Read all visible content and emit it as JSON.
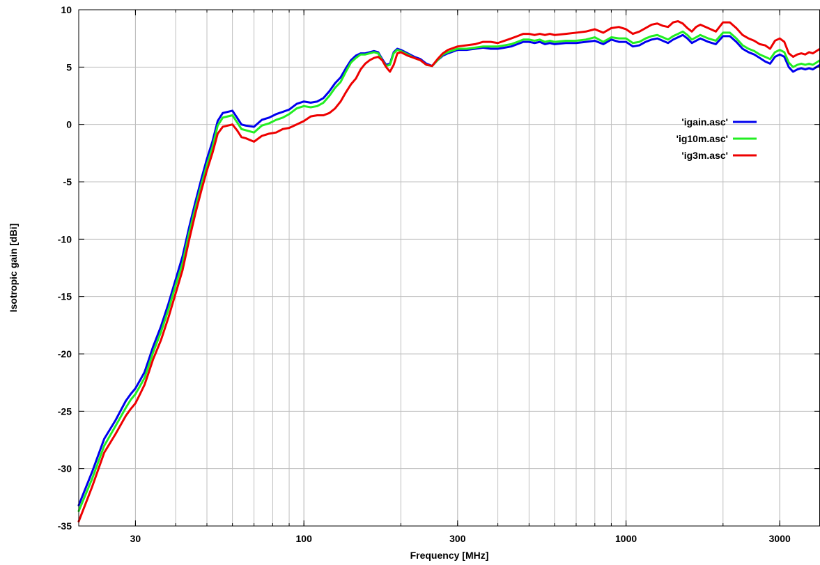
{
  "chart_data": {
    "type": "line",
    "xlabel": "Frequency [MHz]",
    "ylabel": "Isotropic gain [dBi]",
    "xscale": "log",
    "xlim": [
      20,
      4000
    ],
    "ylim": [
      -35,
      10
    ],
    "x_ticks": [
      30,
      100,
      300,
      1000,
      3000
    ],
    "y_ticks": [
      10,
      5,
      0,
      -5,
      -10,
      -15,
      -20,
      -25,
      -30,
      -35
    ],
    "grid": true,
    "legend_position": "top-right",
    "series": [
      {
        "name": "'igain.asc'",
        "color": "#0000ee",
        "x": [
          20,
          22,
          24,
          26,
          28,
          29,
          30,
          31,
          32,
          33,
          34,
          36,
          38,
          40,
          42,
          44,
          46,
          48,
          50,
          52,
          54,
          56,
          58,
          60,
          62,
          64,
          66,
          70,
          74,
          78,
          82,
          86,
          90,
          95,
          100,
          105,
          110,
          115,
          120,
          125,
          130,
          135,
          140,
          145,
          150,
          155,
          160,
          165,
          170,
          175,
          180,
          185,
          190,
          195,
          200,
          210,
          220,
          230,
          240,
          250,
          260,
          270,
          280,
          300,
          320,
          340,
          360,
          380,
          400,
          420,
          440,
          460,
          480,
          500,
          520,
          540,
          560,
          580,
          600,
          650,
          700,
          750,
          800,
          850,
          900,
          950,
          1000,
          1050,
          1100,
          1150,
          1200,
          1250,
          1300,
          1350,
          1400,
          1450,
          1500,
          1550,
          1600,
          1650,
          1700,
          1800,
          1900,
          2000,
          2100,
          2200,
          2300,
          2400,
          2500,
          2600,
          2700,
          2800,
          2900,
          3000,
          3100,
          3200,
          3300,
          3400,
          3500,
          3600,
          3700,
          3800,
          3900,
          4000
        ],
        "values": [
          -33.2,
          -30.3,
          -27.4,
          -25.8,
          -24.1,
          -23.5,
          -23.0,
          -22.3,
          -21.6,
          -20.5,
          -19.4,
          -17.6,
          -15.6,
          -13.5,
          -11.5,
          -9.0,
          -6.8,
          -4.8,
          -3.0,
          -1.5,
          0.3,
          1.0,
          1.1,
          1.2,
          0.6,
          0.0,
          -0.1,
          -0.2,
          0.4,
          0.6,
          0.9,
          1.1,
          1.3,
          1.8,
          2.0,
          1.9,
          2.0,
          2.3,
          2.9,
          3.6,
          4.1,
          4.9,
          5.6,
          6.0,
          6.2,
          6.2,
          6.3,
          6.4,
          6.3,
          5.7,
          5.2,
          5.3,
          6.3,
          6.6,
          6.5,
          6.2,
          5.9,
          5.7,
          5.3,
          5.1,
          5.6,
          6.0,
          6.2,
          6.5,
          6.5,
          6.6,
          6.7,
          6.6,
          6.6,
          6.7,
          6.8,
          7.0,
          7.2,
          7.2,
          7.1,
          7.2,
          7.0,
          7.1,
          7.0,
          7.1,
          7.1,
          7.2,
          7.3,
          7.0,
          7.4,
          7.2,
          7.2,
          6.8,
          6.9,
          7.2,
          7.4,
          7.5,
          7.3,
          7.1,
          7.4,
          7.6,
          7.8,
          7.5,
          7.1,
          7.3,
          7.5,
          7.2,
          7.0,
          7.7,
          7.7,
          7.2,
          6.6,
          6.3,
          6.1,
          5.8,
          5.5,
          5.3,
          5.9,
          6.1,
          5.9,
          5.0,
          4.6,
          4.8,
          4.9,
          4.8,
          4.9,
          4.8,
          5.0,
          5.2
        ]
      },
      {
        "name": "'ig10m.asc'",
        "color": "#22ee22",
        "x": [
          20,
          22,
          24,
          26,
          28,
          29,
          30,
          31,
          32,
          33,
          34,
          36,
          38,
          40,
          42,
          44,
          46,
          48,
          50,
          52,
          54,
          56,
          58,
          60,
          62,
          64,
          66,
          70,
          74,
          78,
          82,
          86,
          90,
          95,
          100,
          105,
          110,
          115,
          120,
          125,
          130,
          135,
          140,
          145,
          150,
          155,
          160,
          165,
          170,
          175,
          180,
          185,
          190,
          195,
          200,
          210,
          220,
          230,
          240,
          250,
          260,
          270,
          280,
          300,
          320,
          340,
          360,
          380,
          400,
          420,
          440,
          460,
          480,
          500,
          520,
          540,
          560,
          580,
          600,
          650,
          700,
          750,
          800,
          850,
          900,
          950,
          1000,
          1050,
          1100,
          1150,
          1200,
          1250,
          1300,
          1350,
          1400,
          1450,
          1500,
          1550,
          1600,
          1650,
          1700,
          1800,
          1900,
          2000,
          2100,
          2200,
          2300,
          2400,
          2500,
          2600,
          2700,
          2800,
          2900,
          3000,
          3100,
          3200,
          3300,
          3400,
          3500,
          3600,
          3700,
          3800,
          3900,
          4000
        ],
        "values": [
          -33.7,
          -30.9,
          -28.0,
          -26.3,
          -24.7,
          -24.0,
          -23.5,
          -22.8,
          -22.1,
          -21.0,
          -19.9,
          -18.1,
          -16.1,
          -14.0,
          -12.1,
          -9.5,
          -7.3,
          -5.3,
          -3.5,
          -2.0,
          -0.1,
          0.6,
          0.7,
          0.8,
          0.2,
          -0.4,
          -0.5,
          -0.7,
          -0.1,
          0.1,
          0.4,
          0.6,
          0.9,
          1.4,
          1.6,
          1.5,
          1.6,
          1.9,
          2.5,
          3.2,
          3.7,
          4.6,
          5.4,
          5.8,
          6.1,
          6.1,
          6.2,
          6.3,
          6.2,
          5.6,
          5.1,
          5.2,
          6.2,
          6.5,
          6.4,
          6.1,
          5.8,
          5.6,
          5.2,
          5.1,
          5.6,
          6.1,
          6.3,
          6.6,
          6.6,
          6.7,
          6.8,
          6.8,
          6.8,
          6.9,
          7.0,
          7.2,
          7.4,
          7.4,
          7.3,
          7.4,
          7.2,
          7.3,
          7.2,
          7.3,
          7.3,
          7.4,
          7.6,
          7.2,
          7.6,
          7.5,
          7.5,
          7.1,
          7.2,
          7.5,
          7.7,
          7.8,
          7.6,
          7.4,
          7.7,
          7.9,
          8.1,
          7.8,
          7.4,
          7.6,
          7.8,
          7.5,
          7.3,
          8.0,
          8.0,
          7.5,
          6.9,
          6.6,
          6.4,
          6.1,
          5.9,
          5.7,
          6.3,
          6.5,
          6.3,
          5.4,
          5.0,
          5.2,
          5.3,
          5.2,
          5.3,
          5.2,
          5.4,
          5.6
        ]
      },
      {
        "name": "'ig3m.asc'",
        "color": "#ee0000",
        "x": [
          20,
          22,
          24,
          26,
          28,
          29,
          30,
          31,
          32,
          33,
          34,
          36,
          38,
          40,
          42,
          44,
          46,
          48,
          50,
          52,
          54,
          56,
          58,
          60,
          62,
          64,
          66,
          70,
          74,
          78,
          82,
          86,
          90,
          95,
          100,
          105,
          110,
          115,
          120,
          125,
          130,
          135,
          140,
          145,
          150,
          155,
          160,
          165,
          170,
          175,
          180,
          185,
          190,
          195,
          200,
          210,
          220,
          230,
          240,
          250,
          260,
          270,
          280,
          300,
          320,
          340,
          360,
          380,
          400,
          420,
          440,
          460,
          480,
          500,
          520,
          540,
          560,
          580,
          600,
          650,
          700,
          750,
          800,
          850,
          900,
          950,
          1000,
          1050,
          1100,
          1150,
          1200,
          1250,
          1300,
          1350,
          1400,
          1450,
          1500,
          1550,
          1600,
          1650,
          1700,
          1800,
          1900,
          2000,
          2100,
          2200,
          2300,
          2400,
          2500,
          2600,
          2700,
          2800,
          2900,
          3000,
          3100,
          3200,
          3300,
          3400,
          3500,
          3600,
          3700,
          3800,
          3900,
          4000
        ],
        "values": [
          -34.6,
          -31.6,
          -28.6,
          -27.0,
          -25.4,
          -24.8,
          -24.3,
          -23.5,
          -22.7,
          -21.6,
          -20.5,
          -18.8,
          -16.8,
          -14.7,
          -12.7,
          -10.1,
          -7.8,
          -5.8,
          -4.0,
          -2.5,
          -0.8,
          -0.2,
          -0.1,
          0.0,
          -0.5,
          -1.1,
          -1.2,
          -1.5,
          -1.0,
          -0.8,
          -0.7,
          -0.4,
          -0.3,
          0.0,
          0.3,
          0.7,
          0.8,
          0.8,
          1.0,
          1.4,
          2.0,
          2.8,
          3.5,
          4.0,
          4.8,
          5.3,
          5.6,
          5.8,
          5.9,
          5.6,
          5.0,
          4.6,
          5.2,
          6.2,
          6.3,
          6.0,
          5.8,
          5.6,
          5.2,
          5.1,
          5.7,
          6.2,
          6.5,
          6.8,
          6.9,
          7.0,
          7.2,
          7.2,
          7.1,
          7.3,
          7.5,
          7.7,
          7.9,
          7.9,
          7.8,
          7.9,
          7.8,
          7.9,
          7.8,
          7.9,
          8.0,
          8.1,
          8.3,
          8.0,
          8.4,
          8.5,
          8.3,
          7.9,
          8.1,
          8.4,
          8.7,
          8.8,
          8.6,
          8.5,
          8.9,
          9.0,
          8.8,
          8.4,
          8.1,
          8.5,
          8.7,
          8.4,
          8.1,
          8.9,
          8.9,
          8.4,
          7.8,
          7.5,
          7.3,
          7.0,
          6.9,
          6.6,
          7.3,
          7.5,
          7.2,
          6.2,
          5.9,
          6.1,
          6.2,
          6.1,
          6.3,
          6.2,
          6.4,
          6.6
        ]
      }
    ]
  }
}
